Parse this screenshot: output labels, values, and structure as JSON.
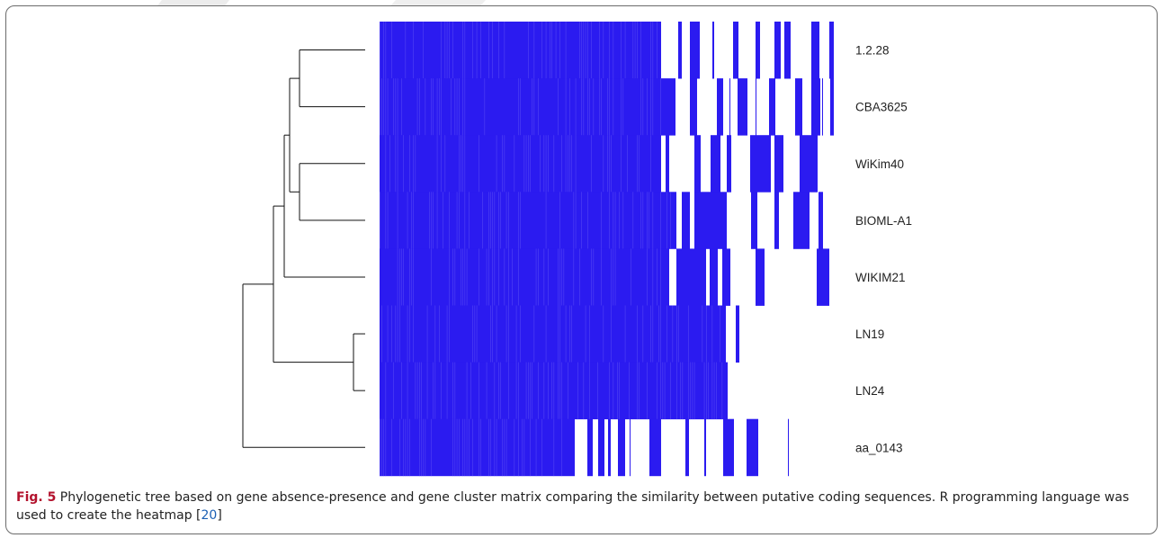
{
  "figure": {
    "labels": [
      "1.2.28",
      "CBA3625",
      "WiKim40",
      "BIOML-A1",
      "WIKIM21",
      "LN19",
      "LN24",
      "aa_0143"
    ],
    "caption_bold": "Fig. 5",
    "caption_text": "Phylogenetic tree based on gene absence-presence and gene cluster matrix comparing the similarity between putative coding sequences. R programming language was used to create the heatmap [",
    "caption_ref": "20",
    "caption_end": "]",
    "colors": {
      "present": "#2b1bf0",
      "absent": "#ffffff",
      "tree": "#111111",
      "caption_accent": "#b3122d",
      "link": "#1a5fb4"
    }
  }
}
